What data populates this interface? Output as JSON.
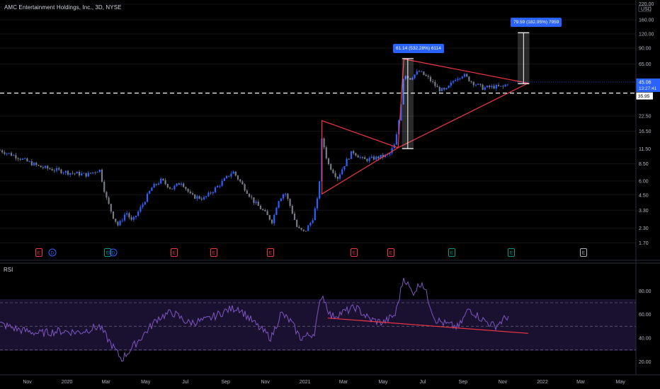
{
  "header": {
    "title": "AMC Entertainment Holdings, Inc., 3D, NYSE",
    "currency": "USD"
  },
  "measure_labels": {
    "first": "61.14 (532.28%) 6114",
    "second": "79.59 (182.95%) 7959"
  },
  "price_axis": {
    "labels": [
      "160.00",
      "120.00",
      "90.00",
      "65.00",
      "22.50",
      "16.50",
      "11.50",
      "8.50",
      "6.00",
      "4.50",
      "3.30",
      "2.30",
      "1.70"
    ],
    "top_partial": "220.00",
    "current_price": "45.06",
    "countdown": "13:27:41",
    "dashed_level": "35.95"
  },
  "rsi_axis": {
    "label": "RSI",
    "labels": [
      "80.00",
      "60.00",
      "40.00",
      "20.00"
    ]
  },
  "time_axis": {
    "labels": [
      "Nov",
      "2020",
      "Mar",
      "May",
      "Jul",
      "Sep",
      "Nov",
      "2021",
      "Mar",
      "May",
      "Jul",
      "Sep",
      "Nov",
      "2022",
      "Mar",
      "May"
    ]
  },
  "event_markers": [
    "E",
    "D",
    "E",
    "D",
    "E",
    "E",
    "E",
    "E",
    "E",
    "E",
    "E",
    "E"
  ],
  "colors": {
    "up_candle": "#2962ff",
    "down_candle": "#787b86",
    "trendline": "#f23645",
    "rsi_line": "#7e57c2",
    "badge": "#2962ff",
    "earnings_past": "#f23645",
    "earnings_beat": "#089981",
    "dividend": "#2962ff"
  },
  "chart_data": [
    {
      "type": "candlestick",
      "title": "AMC Entertainment Holdings, Inc., 3D, NYSE",
      "scale": "log",
      "ylim": [
        1.5,
        220
      ],
      "y_ticks": [
        1.7,
        2.3,
        3.3,
        4.5,
        6,
        8.5,
        11.5,
        16.5,
        22.5,
        65,
        90,
        120,
        160,
        220
      ],
      "x_ticks": [
        "Nov",
        "2020",
        "Mar",
        "May",
        "Jul",
        "Sep",
        "Nov",
        "2021",
        "Mar",
        "May",
        "Jul",
        "Sep",
        "Nov",
        "2022",
        "Mar",
        "May"
      ],
      "close_path": [
        [
          "2019-09-20",
          11.2
        ],
        [
          "2019-10-15",
          9.9
        ],
        [
          "2019-11-01",
          8.9
        ],
        [
          "2019-11-20",
          8.0
        ],
        [
          "2019-12-15",
          7.5
        ],
        [
          "2020-01-05",
          7.1
        ],
        [
          "2020-02-01",
          6.8
        ],
        [
          "2020-02-20",
          7.6
        ],
        [
          "2020-03-01",
          4.3
        ],
        [
          "2020-03-12",
          2.9
        ],
        [
          "2020-03-20",
          2.4
        ],
        [
          "2020-04-01",
          3.2
        ],
        [
          "2020-04-10",
          2.6
        ],
        [
          "2020-04-25",
          3.6
        ],
        [
          "2020-05-10",
          5.2
        ],
        [
          "2020-05-25",
          6.1
        ],
        [
          "2020-06-10",
          5.1
        ],
        [
          "2020-06-25",
          5.9
        ],
        [
          "2020-07-10",
          4.4
        ],
        [
          "2020-07-30",
          4.2
        ],
        [
          "2020-08-20",
          5.4
        ],
        [
          "2020-09-01",
          6.3
        ],
        [
          "2020-09-12",
          7.3
        ],
        [
          "2020-09-30",
          5.2
        ],
        [
          "2020-10-15",
          3.9
        ],
        [
          "2020-10-30",
          3.2
        ],
        [
          "2020-11-12",
          2.6
        ],
        [
          "2020-11-20",
          4.0
        ],
        [
          "2020-12-01",
          4.8
        ],
        [
          "2020-12-10",
          3.5
        ],
        [
          "2020-12-20",
          2.3
        ],
        [
          "2020-12-31",
          2.1
        ],
        [
          "2021-01-12",
          2.7
        ],
        [
          "2021-01-22",
          4.5
        ],
        [
          "2021-01-27",
          14.5
        ],
        [
          "2021-02-05",
          8.6
        ],
        [
          "2021-02-20",
          6.4
        ],
        [
          "2021-03-05",
          8.9
        ],
        [
          "2021-03-15",
          11.0
        ],
        [
          "2021-04-01",
          9.2
        ],
        [
          "2021-04-20",
          9.6
        ],
        [
          "2021-05-10",
          10.2
        ],
        [
          "2021-05-20",
          12.9
        ],
        [
          "2021-05-28",
          26.5
        ],
        [
          "2021-06-02",
          55.0
        ],
        [
          "2021-06-10",
          48.0
        ],
        [
          "2021-06-25",
          56.0
        ],
        [
          "2021-07-10",
          48.5
        ],
        [
          "2021-07-25",
          39.0
        ],
        [
          "2021-08-05",
          37.5
        ],
        [
          "2021-08-20",
          48.5
        ],
        [
          "2021-09-01",
          52.5
        ],
        [
          "2021-09-15",
          45.0
        ],
        [
          "2021-10-01",
          40.0
        ],
        [
          "2021-10-20",
          41.0
        ],
        [
          "2021-11-01",
          40.5
        ],
        [
          "2021-11-10",
          45.06
        ]
      ],
      "last_price": 45.06,
      "dashed_level": 35.95,
      "annotations": [
        {
          "kind": "triangle",
          "points": [
            [
              "2021-01-27",
              20.5
            ],
            [
              "2021-05-24",
              11.8
            ],
            [
              "2021-01-27",
              4.6
            ]
          ]
        },
        {
          "kind": "triangle",
          "points": [
            [
              "2021-06-02",
              72.0
            ],
            [
              "2021-12-10",
              44.0
            ],
            [
              "2021-05-24",
              11.8
            ]
          ]
        },
        {
          "kind": "price_range",
          "from": [
            "2021-06-08",
            11.6
          ],
          "to": [
            "2021-06-08",
            72.7
          ],
          "label": "61.14 (532.28%) 6114"
        },
        {
          "kind": "price_range",
          "from": [
            "2021-12-03",
            43.5
          ],
          "to": [
            "2021-12-03",
            123.1
          ],
          "label": "79.59 (182.95%) 7959"
        }
      ]
    },
    {
      "type": "line",
      "title": "RSI",
      "ylim": [
        10,
        100
      ],
      "y_ticks": [
        20,
        40,
        60,
        80
      ],
      "bands": [
        30,
        50,
        70
      ],
      "x": [
        "2019-09-20",
        "2019-10-20",
        "2019-11-20",
        "2019-12-20",
        "2020-01-20",
        "2020-02-20",
        "2020-03-10",
        "2020-03-25",
        "2020-04-20",
        "2020-05-20",
        "2020-06-10",
        "2020-07-05",
        "2020-08-01",
        "2020-09-05",
        "2020-09-20",
        "2020-10-20",
        "2020-11-10",
        "2020-11-25",
        "2020-12-10",
        "2020-12-25",
        "2021-01-15",
        "2021-01-27",
        "2021-02-10",
        "2021-03-01",
        "2021-03-20",
        "2021-04-10",
        "2021-05-01",
        "2021-05-20",
        "2021-06-02",
        "2021-06-15",
        "2021-06-30",
        "2021-07-20",
        "2021-08-05",
        "2021-08-25",
        "2021-09-10",
        "2021-09-30",
        "2021-10-20",
        "2021-11-10"
      ],
      "values": [
        52,
        47,
        44,
        46,
        45,
        50,
        34,
        22,
        38,
        57,
        62,
        53,
        55,
        64,
        66,
        50,
        40,
        61,
        54,
        40,
        44,
        78,
        58,
        62,
        66,
        56,
        53,
        60,
        92,
        78,
        88,
        56,
        52,
        49,
        65,
        56,
        50,
        59
      ],
      "annotations": [
        {
          "kind": "trendline",
          "from": [
            "2021-02-05",
            57
          ],
          "to": [
            "2021-12-10",
            44
          ]
        }
      ]
    }
  ]
}
